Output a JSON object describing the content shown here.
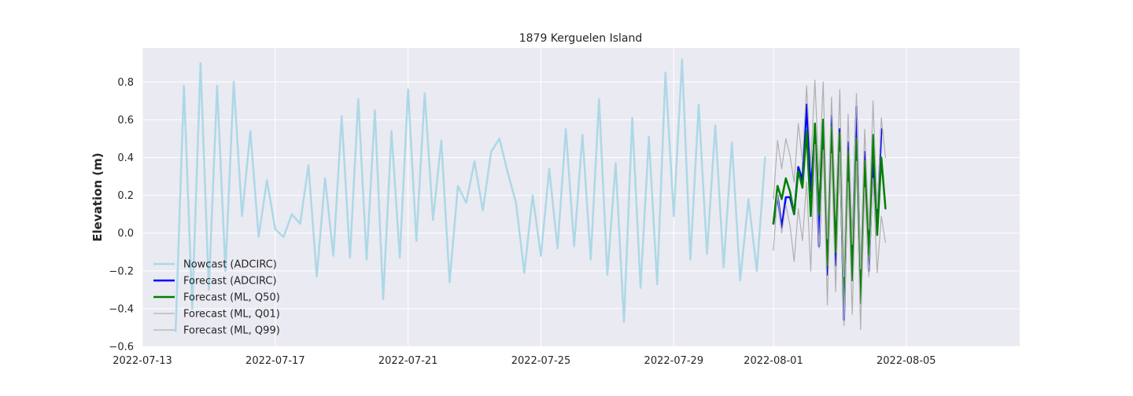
{
  "chart_data": {
    "type": "line",
    "title": "1879 Kerguelen Island",
    "xlabel": "",
    "ylabel": "Elevation (m)",
    "xlim": [
      "2022-07-13T00:00",
      "2022-08-08T10:00"
    ],
    "ylim": [
      -0.6,
      0.98
    ],
    "x_ticks": [
      "2022-07-13",
      "2022-07-17",
      "2022-07-21",
      "2022-07-25",
      "2022-07-29",
      "2022-08-01",
      "2022-08-05"
    ],
    "y_ticks": [
      -0.6,
      -0.4,
      -0.2,
      0.0,
      0.2,
      0.4,
      0.6,
      0.8
    ],
    "y_tick_labels": [
      "−0.6",
      "−0.4",
      "−0.2",
      "0.0",
      "0.2",
      "0.4",
      "0.6",
      "0.8"
    ],
    "grid": true,
    "legend_position": "lower-left",
    "background": "#eaeaf2",
    "series": [
      {
        "name": "Nowcast (ADCIRC)",
        "color": "#add8e6",
        "width": 2.5,
        "start": "2022-07-14T00:00",
        "step_hours": 6,
        "values": [
          -0.52,
          0.78,
          -0.4,
          0.9,
          -0.3,
          0.78,
          -0.2,
          0.8,
          0.09,
          0.54,
          -0.02,
          0.28,
          0.02,
          -0.02,
          0.1,
          0.05,
          0.36,
          -0.23,
          0.29,
          -0.12,
          0.62,
          -0.13,
          0.71,
          -0.14,
          0.65,
          -0.35,
          0.54,
          -0.13,
          0.76,
          -0.04,
          0.74,
          0.07,
          0.49,
          -0.26,
          0.25,
          0.16,
          0.38,
          0.12,
          0.43,
          0.5,
          0.32,
          0.16,
          -0.21,
          0.2,
          -0.12,
          0.34,
          -0.08,
          0.55,
          -0.07,
          0.52,
          -0.14,
          0.71,
          -0.22,
          0.37,
          -0.47,
          0.61,
          -0.29,
          0.51,
          -0.27,
          0.85,
          0.09,
          0.92,
          -0.14,
          0.68,
          -0.11,
          0.57,
          -0.18,
          0.48,
          -0.25,
          0.18,
          -0.2,
          0.4
        ]
      },
      {
        "name": "Forecast (ADCIRC)",
        "color": "#0000ff",
        "width": 2.5,
        "start": "2022-08-01T00:00",
        "step_hours": 3,
        "values": [
          0.05,
          0.2,
          0.03,
          0.19,
          0.19,
          0.1,
          0.35,
          0.28,
          0.68,
          0.22,
          0.54,
          -0.07,
          0.6,
          -0.22,
          0.62,
          -0.17,
          0.55,
          -0.46,
          0.48,
          -0.14,
          0.67,
          -0.33,
          0.43,
          -0.2,
          0.4,
          0.04,
          0.55
        ]
      },
      {
        "name": "Forecast (ML, Q50)",
        "color": "#008000",
        "width": 2.5,
        "start": "2022-08-01T00:00",
        "step_hours": 3,
        "values": [
          0.05,
          0.25,
          0.18,
          0.29,
          0.22,
          0.1,
          0.33,
          0.24,
          0.54,
          0.09,
          0.58,
          0.1,
          0.6,
          -0.17,
          0.56,
          -0.1,
          0.53,
          -0.38,
          0.43,
          -0.25,
          0.5,
          -0.37,
          0.38,
          -0.13,
          0.52,
          -0.01,
          0.4,
          0.13
        ]
      },
      {
        "name": "Forecast (ML, Q01)",
        "color": "#b0b0b0",
        "width": 1.2,
        "start": "2022-08-01T00:00",
        "step_hours": 3,
        "values": [
          -0.09,
          0.21,
          0.0,
          0.15,
          0.04,
          -0.15,
          0.13,
          -0.04,
          0.27,
          -0.2,
          0.47,
          -0.08,
          0.44,
          -0.38,
          0.42,
          -0.31,
          0.43,
          -0.49,
          0.27,
          -0.43,
          0.38,
          -0.51,
          0.24,
          -0.23,
          0.29,
          -0.21,
          0.09,
          -0.05
        ]
      },
      {
        "name": "Forecast (ML, Q99)",
        "color": "#b0b0b0",
        "width": 1.2,
        "start": "2022-08-01T00:00",
        "step_hours": 3,
        "values": [
          0.18,
          0.49,
          0.34,
          0.5,
          0.41,
          0.27,
          0.58,
          0.38,
          0.78,
          0.36,
          0.81,
          0.3,
          0.8,
          -0.03,
          0.72,
          0.1,
          0.76,
          -0.23,
          0.63,
          -0.06,
          0.74,
          -0.19,
          0.55,
          0.02,
          0.7,
          0.13,
          0.61,
          0.4
        ]
      }
    ]
  }
}
